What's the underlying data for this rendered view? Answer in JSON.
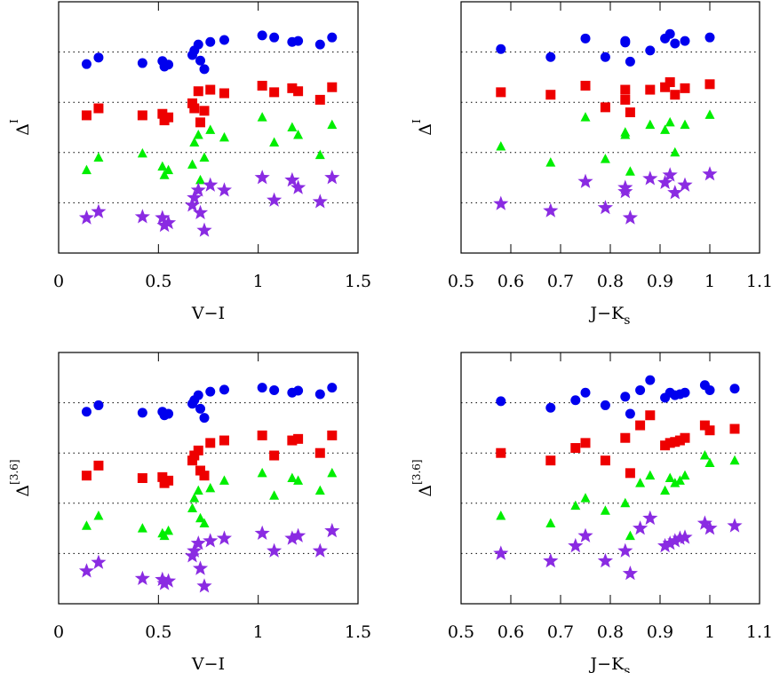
{
  "chart_data": [
    {
      "type": "scatter",
      "xlabel": "V−I",
      "ylabel": "Δ",
      "ylabel_superscript": "I",
      "xlim": [
        0,
        1.5
      ],
      "xticks": [
        0,
        0.5,
        1,
        1.5
      ],
      "ylim": [
        0,
        5
      ],
      "hlines": [
        1,
        2,
        3,
        4
      ],
      "series": [
        {
          "color": "#0000ee",
          "marker": "circle",
          "x": [
            0.14,
            0.2,
            0.42,
            0.52,
            0.53,
            0.55,
            0.67,
            0.68,
            0.7,
            0.71,
            0.73,
            0.76,
            0.83,
            1.02,
            1.08,
            1.17,
            1.2,
            1.31,
            1.37
          ],
          "values": [
            3.76,
            3.89,
            3.78,
            3.82,
            3.71,
            3.75,
            3.94,
            4.03,
            4.15,
            3.83,
            3.66,
            4.2,
            4.24,
            4.33,
            4.29,
            4.2,
            4.22,
            4.15,
            4.29
          ]
        },
        {
          "color": "#ee0000",
          "marker": "square",
          "x": [
            0.14,
            0.2,
            0.42,
            0.52,
            0.53,
            0.55,
            0.67,
            0.68,
            0.7,
            0.71,
            0.73,
            0.76,
            0.83,
            1.02,
            1.08,
            1.17,
            1.2,
            1.31,
            1.37
          ],
          "values": [
            2.74,
            2.88,
            2.74,
            2.77,
            2.64,
            2.7,
            2.98,
            2.88,
            3.22,
            2.6,
            2.83,
            3.25,
            3.18,
            3.33,
            3.2,
            3.28,
            3.22,
            3.05,
            3.3
          ]
        },
        {
          "color": "#00ee00",
          "marker": "triangle",
          "x": [
            0.14,
            0.2,
            0.42,
            0.52,
            0.53,
            0.55,
            0.67,
            0.68,
            0.7,
            0.71,
            0.73,
            0.76,
            0.83,
            1.02,
            1.08,
            1.17,
            1.2,
            1.31,
            1.37
          ],
          "values": [
            1.65,
            1.9,
            1.98,
            1.72,
            1.55,
            1.65,
            1.76,
            2.2,
            2.35,
            1.45,
            1.9,
            2.45,
            2.3,
            2.7,
            2.2,
            2.5,
            2.35,
            1.95,
            2.55
          ]
        },
        {
          "color": "#8a2be2",
          "marker": "star",
          "x": [
            0.14,
            0.2,
            0.42,
            0.52,
            0.53,
            0.55,
            0.67,
            0.68,
            0.7,
            0.71,
            0.73,
            0.76,
            0.83,
            1.02,
            1.08,
            1.17,
            1.2,
            1.31,
            1.37
          ],
          "values": [
            0.7,
            0.82,
            0.72,
            0.7,
            0.55,
            0.6,
            0.95,
            1.1,
            1.25,
            0.8,
            0.45,
            1.35,
            1.25,
            1.5,
            1.05,
            1.45,
            1.3,
            1.02,
            1.5
          ]
        }
      ]
    },
    {
      "type": "scatter",
      "xlabel": "J−K",
      "xlabel_subscript": "s",
      "ylabel": "Δ",
      "ylabel_superscript": "I",
      "xlim": [
        0.5,
        1.1
      ],
      "xticks": [
        0.5,
        0.6,
        0.7,
        0.8,
        0.9,
        1,
        1.1
      ],
      "ylim": [
        0,
        5
      ],
      "hlines": [
        1,
        2,
        3,
        4
      ],
      "series": [
        {
          "color": "#0000ee",
          "marker": "circle",
          "x": [
            0.58,
            0.68,
            0.75,
            0.79,
            0.83,
            0.83,
            0.84,
            0.88,
            0.91,
            0.92,
            0.93,
            0.95,
            1.0
          ],
          "values": [
            4.06,
            3.9,
            4.27,
            3.9,
            4.19,
            4.22,
            3.81,
            4.03,
            4.27,
            4.36,
            4.17,
            4.22,
            4.29
          ]
        },
        {
          "color": "#ee0000",
          "marker": "square",
          "x": [
            0.58,
            0.68,
            0.75,
            0.79,
            0.83,
            0.83,
            0.84,
            0.88,
            0.91,
            0.92,
            0.93,
            0.95,
            1.0
          ],
          "values": [
            3.2,
            3.15,
            3.33,
            2.9,
            3.25,
            3.05,
            2.8,
            3.25,
            3.3,
            3.4,
            3.15,
            3.28,
            3.36
          ]
        },
        {
          "color": "#00ee00",
          "marker": "triangle",
          "x": [
            0.58,
            0.68,
            0.75,
            0.79,
            0.83,
            0.83,
            0.84,
            0.88,
            0.91,
            0.92,
            0.93,
            0.95,
            1.0
          ],
          "values": [
            2.12,
            1.8,
            2.7,
            1.87,
            2.4,
            2.35,
            1.62,
            2.55,
            2.45,
            2.6,
            2.0,
            2.55,
            2.75
          ]
        },
        {
          "color": "#8a2be2",
          "marker": "star",
          "x": [
            0.58,
            0.68,
            0.75,
            0.79,
            0.83,
            0.83,
            0.84,
            0.88,
            0.91,
            0.92,
            0.93,
            0.95,
            1.0
          ],
          "values": [
            0.98,
            0.84,
            1.42,
            0.9,
            1.3,
            1.22,
            0.7,
            1.48,
            1.4,
            1.55,
            1.2,
            1.35,
            1.57
          ]
        }
      ]
    },
    {
      "type": "scatter",
      "xlabel": "V−I",
      "ylabel": "Δ",
      "ylabel_superscript": "[3.6]",
      "xlim": [
        0,
        1.5
      ],
      "xticks": [
        0,
        0.5,
        1,
        1.5
      ],
      "ylim": [
        0,
        5
      ],
      "hlines": [
        1,
        2,
        3,
        4
      ],
      "series": [
        {
          "color": "#0000ee",
          "marker": "circle",
          "x": [
            0.14,
            0.2,
            0.42,
            0.52,
            0.53,
            0.55,
            0.67,
            0.68,
            0.7,
            0.71,
            0.73,
            0.76,
            0.83,
            1.02,
            1.08,
            1.17,
            1.2,
            1.31,
            1.37
          ],
          "values": [
            3.82,
            3.95,
            3.8,
            3.82,
            3.75,
            3.78,
            3.98,
            4.05,
            4.15,
            3.88,
            3.7,
            4.22,
            4.26,
            4.3,
            4.25,
            4.2,
            4.24,
            4.17,
            4.3
          ]
        },
        {
          "color": "#ee0000",
          "marker": "square",
          "x": [
            0.14,
            0.2,
            0.42,
            0.52,
            0.53,
            0.55,
            0.67,
            0.68,
            0.7,
            0.71,
            0.73,
            0.76,
            0.83,
            1.02,
            1.08,
            1.17,
            1.2,
            1.31,
            1.37
          ],
          "values": [
            2.55,
            2.75,
            2.5,
            2.52,
            2.4,
            2.45,
            2.85,
            2.95,
            3.05,
            2.65,
            2.55,
            3.2,
            3.25,
            3.35,
            2.95,
            3.25,
            3.28,
            3.0,
            3.35
          ]
        },
        {
          "color": "#00ee00",
          "marker": "triangle",
          "x": [
            0.14,
            0.2,
            0.42,
            0.52,
            0.53,
            0.55,
            0.67,
            0.68,
            0.7,
            0.71,
            0.73,
            0.76,
            0.83,
            1.02,
            1.08,
            1.17,
            1.2,
            1.31,
            1.37
          ],
          "values": [
            1.55,
            1.75,
            1.5,
            1.4,
            1.35,
            1.45,
            1.9,
            2.1,
            2.25,
            1.7,
            1.6,
            2.3,
            2.45,
            2.6,
            2.15,
            2.5,
            2.45,
            2.25,
            2.6
          ]
        },
        {
          "color": "#8a2be2",
          "marker": "star",
          "x": [
            0.14,
            0.2,
            0.42,
            0.52,
            0.53,
            0.55,
            0.67,
            0.68,
            0.7,
            0.71,
            0.73,
            0.76,
            0.83,
            1.02,
            1.08,
            1.17,
            1.2,
            1.31,
            1.37
          ],
          "values": [
            0.65,
            0.82,
            0.5,
            0.48,
            0.4,
            0.45,
            0.95,
            1.05,
            1.2,
            0.7,
            0.35,
            1.25,
            1.3,
            1.4,
            1.05,
            1.3,
            1.35,
            1.05,
            1.45
          ]
        }
      ]
    },
    {
      "type": "scatter",
      "xlabel": "J−K",
      "xlabel_subscript": "s",
      "ylabel": "Δ",
      "ylabel_superscript": "[3.6]",
      "xlim": [
        0.5,
        1.1
      ],
      "xticks": [
        0.5,
        0.6,
        0.7,
        0.8,
        0.9,
        1,
        1.1
      ],
      "ylim": [
        0,
        5
      ],
      "hlines": [
        1,
        2,
        3,
        4
      ],
      "series": [
        {
          "color": "#0000ee",
          "marker": "circle",
          "x": [
            0.58,
            0.68,
            0.73,
            0.75,
            0.79,
            0.83,
            0.84,
            0.86,
            0.88,
            0.91,
            0.92,
            0.93,
            0.94,
            0.95,
            0.99,
            1.0,
            1.05
          ],
          "values": [
            4.03,
            3.9,
            4.05,
            4.2,
            3.95,
            4.12,
            3.78,
            4.25,
            4.45,
            4.1,
            4.2,
            4.15,
            4.17,
            4.2,
            4.35,
            4.25,
            4.28
          ]
        },
        {
          "color": "#ee0000",
          "marker": "square",
          "x": [
            0.58,
            0.68,
            0.73,
            0.75,
            0.79,
            0.83,
            0.84,
            0.86,
            0.88,
            0.91,
            0.92,
            0.93,
            0.94,
            0.95,
            0.99,
            1.0,
            1.05
          ],
          "values": [
            3.0,
            2.85,
            3.1,
            3.2,
            2.85,
            3.3,
            2.6,
            3.55,
            3.75,
            3.15,
            3.2,
            3.22,
            3.25,
            3.3,
            3.55,
            3.45,
            3.48
          ]
        },
        {
          "color": "#00ee00",
          "marker": "triangle",
          "x": [
            0.58,
            0.68,
            0.73,
            0.75,
            0.79,
            0.83,
            0.84,
            0.86,
            0.88,
            0.91,
            0.92,
            0.93,
            0.94,
            0.95,
            0.99,
            1.0,
            1.05
          ],
          "values": [
            1.75,
            1.6,
            1.95,
            2.1,
            1.85,
            2.0,
            1.35,
            2.4,
            2.55,
            2.25,
            2.5,
            2.4,
            2.45,
            2.55,
            2.95,
            2.8,
            2.85
          ]
        },
        {
          "color": "#8a2be2",
          "marker": "star",
          "x": [
            0.58,
            0.68,
            0.73,
            0.75,
            0.79,
            0.83,
            0.84,
            0.86,
            0.88,
            0.91,
            0.92,
            0.93,
            0.94,
            0.95,
            0.99,
            1.0,
            1.05
          ],
          "values": [
            1.0,
            0.85,
            1.15,
            1.35,
            0.85,
            1.05,
            0.6,
            1.5,
            1.7,
            1.15,
            1.2,
            1.25,
            1.3,
            1.32,
            1.6,
            1.5,
            1.55
          ]
        }
      ]
    }
  ]
}
